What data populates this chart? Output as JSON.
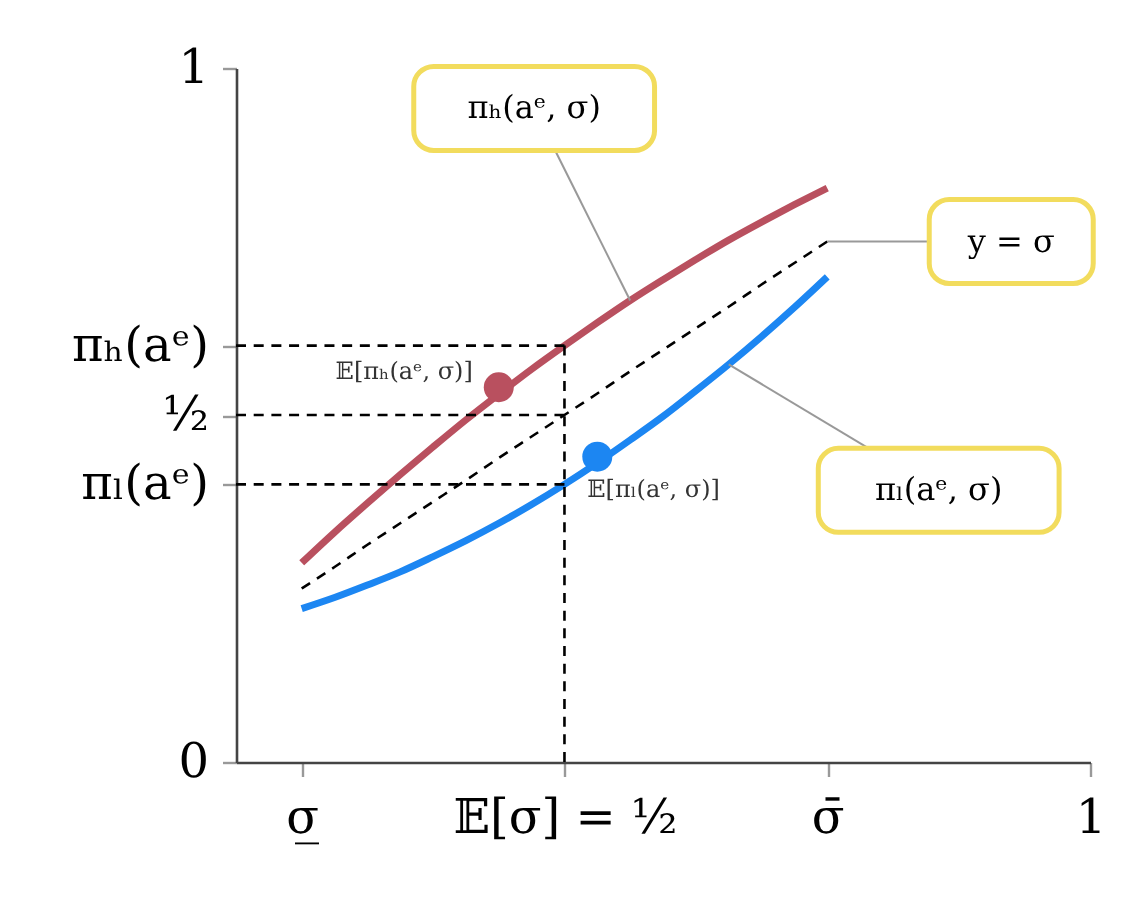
{
  "chart_data": {
    "type": "line",
    "categories": [
      null,
      null,
      "σ̲",
      null,
      null,
      null,
      null,
      null,
      null,
      null,
      "𝔼[σ] = ½",
      null,
      null,
      null,
      null,
      null,
      null,
      null,
      "σ̄",
      null,
      null,
      null,
      null,
      null,
      null,
      null,
      "1"
    ],
    "ylim": [
      0,
      1
    ],
    "yticks": [
      0,
      {
        "value": 0.4,
        "label": "πₗ(aᵉ)"
      },
      {
        "value": 0.5,
        "label": "½"
      },
      {
        "value": 0.6,
        "label": "πₕ(aᵉ)"
      },
      1
    ],
    "series": [
      {
        "name": "πₕ(aᵉ, σ)",
        "color": "#b9505f",
        "values": [
          null,
          null,
          0.287,
          0.331,
          0.373,
          0.414,
          0.454,
          0.493,
          0.53,
          0.566,
          0.6,
          0.633,
          0.665,
          0.695,
          0.724,
          0.752,
          0.778,
          0.803,
          0.827,
          null,
          null,
          null,
          null,
          null,
          null,
          null,
          null
        ]
      },
      {
        "name": "y = σ",
        "color": "#000000",
        "line_style": "dashed",
        "values": [
          null,
          null,
          0.25,
          0.281,
          0.313,
          0.344,
          0.375,
          0.406,
          0.438,
          0.469,
          0.5,
          0.531,
          0.563,
          0.594,
          0.625,
          0.656,
          0.688,
          0.719,
          0.75,
          null,
          null,
          null,
          null,
          null,
          null,
          null,
          null
        ]
      },
      {
        "name": "πₗ(aᵉ, σ)",
        "color": "#1c86f2",
        "values": [
          null,
          null,
          0.221,
          0.237,
          0.255,
          0.274,
          0.296,
          0.319,
          0.344,
          0.371,
          0.4,
          0.431,
          0.464,
          0.498,
          0.535,
          0.573,
          0.613,
          0.655,
          0.699,
          null,
          null,
          null,
          null,
          null,
          null,
          null,
          null
        ]
      },
      {
        "type": "line",
        "color": "#000000",
        "line_style": "dashed",
        "values": [
          0.6,
          0.6,
          0.6,
          0.6,
          0.6,
          0.6,
          0.6,
          0.6,
          0.6,
          0.6,
          0.6,
          null,
          null,
          null,
          null,
          null,
          null,
          null,
          null,
          null,
          null,
          null,
          null,
          null,
          null,
          null,
          null
        ]
      },
      {
        "type": "line",
        "color": "#000000",
        "line_style": "dashed",
        "values": [
          0.5,
          0.5,
          0.5,
          0.5,
          0.5,
          0.5,
          0.5,
          0.5,
          0.5,
          0.5,
          0.5,
          null,
          null,
          null,
          null,
          null,
          null,
          null,
          null,
          null,
          null,
          null,
          null,
          null,
          null,
          null,
          null
        ]
      },
      {
        "type": "line",
        "color": "#000000",
        "line_style": "dashed",
        "values": [
          0.4,
          0.4,
          0.4,
          0.4,
          0.4,
          0.4,
          0.4,
          0.4,
          0.4,
          0.4,
          0.4,
          null,
          null,
          null,
          null,
          null,
          null,
          null,
          null,
          null,
          null,
          null,
          null,
          null,
          null,
          null,
          null
        ]
      },
      {
        "type": "line",
        "color": "#000000",
        "line_style": "dashed",
        "x": [
          "𝔼[σ] = ½",
          "𝔼[σ] = ½"
        ],
        "values": [
          0,
          0.6
        ]
      },
      {
        "type": "scatter",
        "name": "𝔼[πₕ(aᵉ, σ)]",
        "color": "#b9505f",
        "marker": "circle",
        "values": [
          null,
          null,
          null,
          null,
          null,
          null,
          null,
          null,
          0.54,
          null,
          null,
          null,
          null,
          null,
          null,
          null,
          null,
          null,
          null,
          null,
          null,
          null,
          null,
          null,
          null,
          null,
          null
        ]
      },
      {
        "type": "scatter",
        "name": "𝔼[πₗ(aᵉ, σ)]",
        "color": "#1c86f2",
        "marker": "circle",
        "values": [
          null,
          null,
          null,
          null,
          null,
          null,
          null,
          null,
          null,
          null,
          null,
          0.44,
          null,
          null,
          null,
          null,
          null,
          null,
          null,
          null,
          null,
          null,
          null,
          null,
          null,
          null,
          null
        ]
      }
    ]
  }
}
